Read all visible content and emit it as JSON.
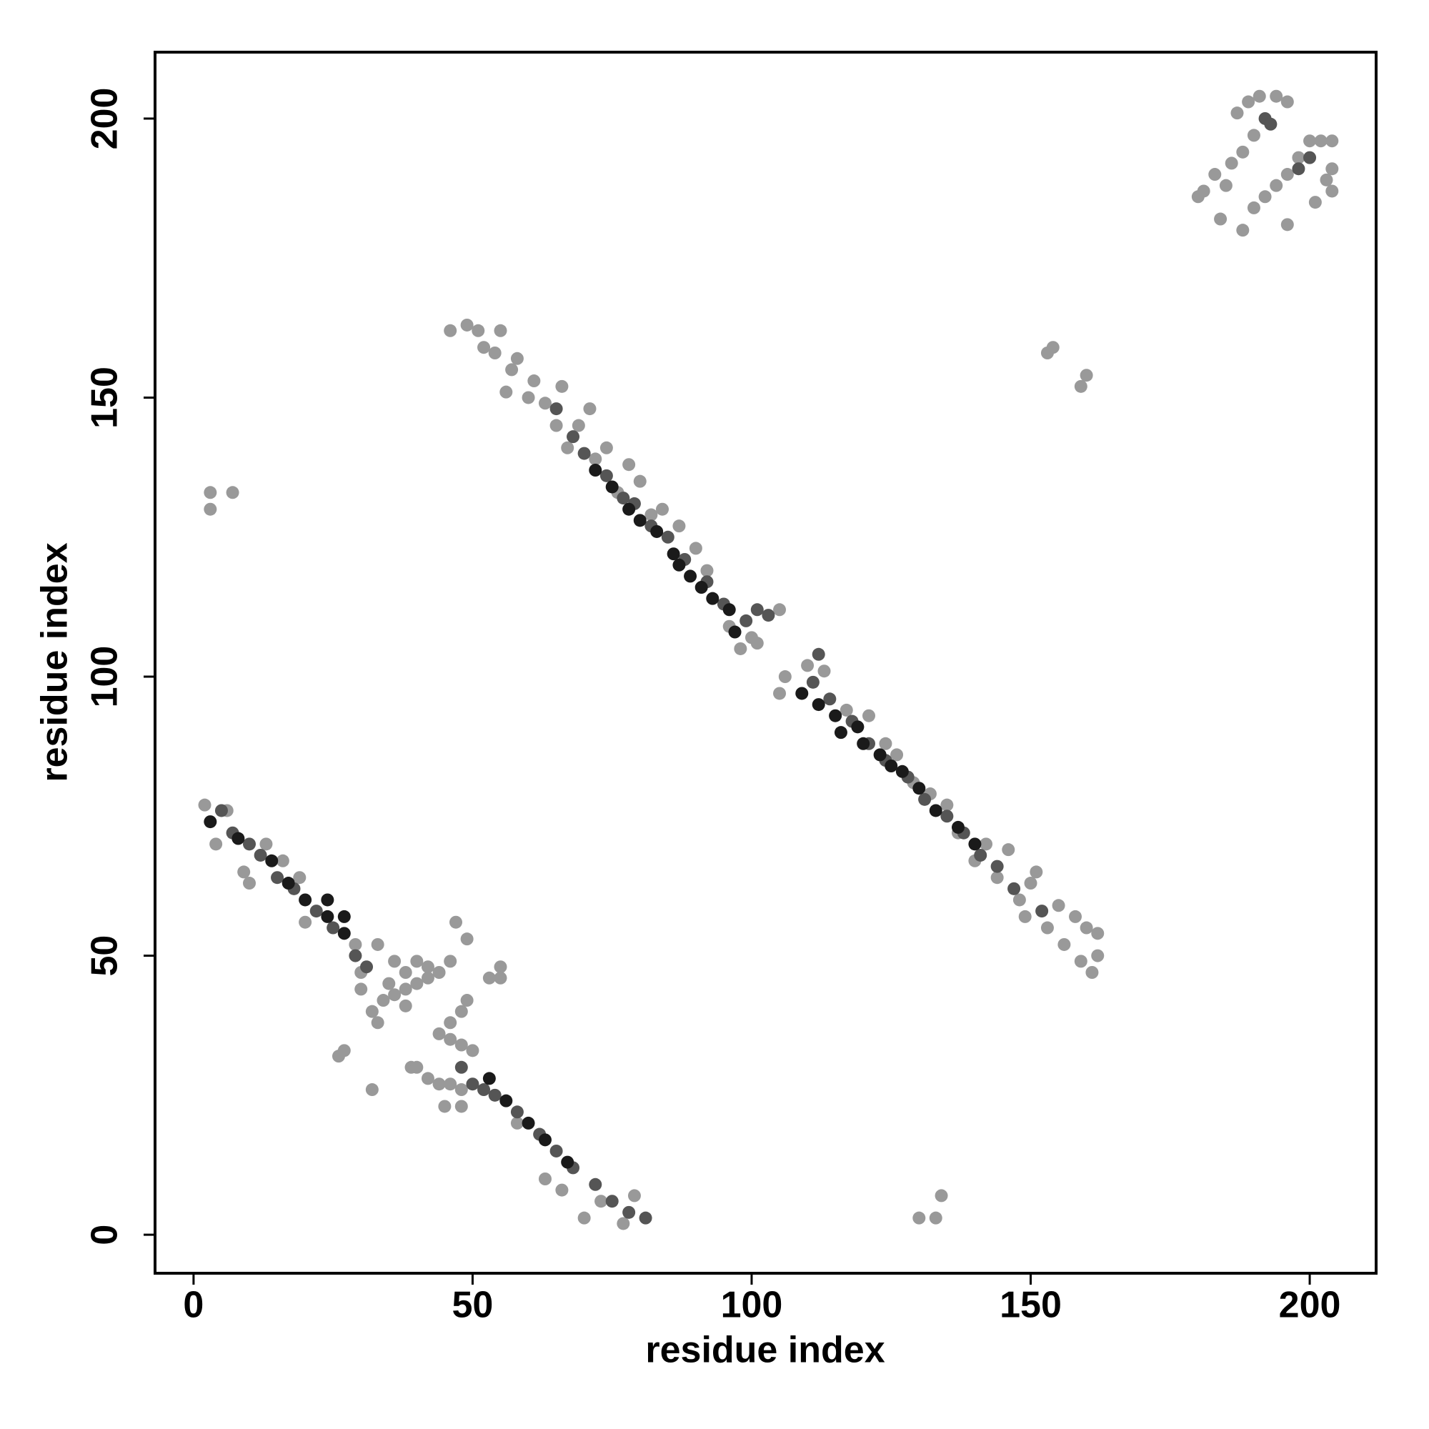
{
  "chart_data": {
    "type": "scatter",
    "x_label": "residue index",
    "y_label": "residue index",
    "xlim": [
      -6.9,
      211.9
    ],
    "ylim": [
      -6.9,
      211.9
    ],
    "xticks": [
      0,
      50,
      100,
      150,
      200
    ],
    "yticks": [
      0,
      50,
      100,
      150,
      200
    ],
    "series": [
      {
        "color": "#999999",
        "x": [
          2,
          4,
          6,
          9,
          10,
          13,
          16,
          19,
          20,
          29,
          33,
          30,
          30,
          32,
          33,
          35,
          36,
          38,
          40,
          42,
          44,
          46,
          36,
          38,
          40,
          42,
          34,
          38,
          39,
          40,
          42,
          44,
          46,
          48,
          45,
          48,
          44,
          46,
          48,
          49,
          46,
          48,
          50,
          47,
          49,
          53,
          55,
          55,
          26,
          32,
          27,
          58,
          63,
          66,
          70,
          73,
          77,
          79,
          46,
          49,
          51,
          52,
          54,
          55,
          57,
          56,
          58,
          60,
          61,
          63,
          65,
          66,
          67,
          69,
          71,
          72,
          74,
          76,
          78,
          80,
          82,
          84,
          87,
          90,
          92,
          96,
          98,
          100,
          101,
          105,
          105,
          106,
          110,
          113,
          117,
          121,
          124,
          126,
          129,
          132,
          135,
          137,
          140,
          142,
          144,
          146,
          148,
          149,
          150,
          151,
          153,
          155,
          156,
          158,
          159,
          160,
          161,
          162,
          162,
          180,
          181,
          183,
          185,
          186,
          188,
          190,
          187,
          189,
          191,
          194,
          196,
          184,
          188,
          190,
          192,
          194,
          196,
          198,
          200,
          202,
          204,
          204,
          204,
          201,
          203,
          196,
          3,
          3,
          7,
          153,
          154,
          159,
          160,
          130,
          133,
          134
        ],
        "y": [
          77,
          70,
          76,
          65,
          63,
          70,
          67,
          64,
          56,
          52,
          52,
          47,
          44,
          40,
          38,
          45,
          49,
          47,
          49,
          48,
          47,
          49,
          43,
          44,
          45,
          46,
          42,
          41,
          30,
          30,
          28,
          27,
          27,
          26,
          23,
          23,
          36,
          38,
          40,
          42,
          35,
          34,
          33,
          56,
          53,
          46,
          48,
          46,
          32,
          26,
          33,
          20,
          10,
          8,
          3,
          6,
          2,
          7,
          162,
          163,
          162,
          159,
          158,
          162,
          155,
          151,
          157,
          150,
          153,
          149,
          145,
          152,
          141,
          145,
          148,
          139,
          141,
          133,
          138,
          135,
          129,
          130,
          127,
          123,
          119,
          109,
          105,
          107,
          106,
          112,
          97,
          100,
          102,
          101,
          94,
          93,
          88,
          86,
          81,
          79,
          77,
          72,
          67,
          70,
          64,
          69,
          60,
          57,
          63,
          65,
          55,
          59,
          52,
          57,
          49,
          55,
          47,
          50,
          54,
          186,
          187,
          190,
          188,
          192,
          194,
          197,
          201,
          203,
          204,
          204,
          203,
          182,
          180,
          184,
          186,
          188,
          190,
          193,
          196,
          196,
          196,
          191,
          187,
          185,
          189,
          181,
          130,
          133,
          133,
          158,
          159,
          152,
          154,
          3,
          3,
          7
        ]
      },
      {
        "color": "#555555",
        "x": [
          5,
          7,
          10,
          12,
          15,
          18,
          22,
          25,
          29,
          31,
          48,
          50,
          52,
          54,
          58,
          62,
          65,
          68,
          72,
          75,
          78,
          81,
          65,
          68,
          70,
          74,
          77,
          79,
          82,
          85,
          88,
          92,
          95,
          99,
          101,
          103,
          112,
          111,
          114,
          118,
          121,
          124,
          128,
          131,
          135,
          138,
          141,
          144,
          147,
          152,
          192,
          193,
          200,
          198
        ],
        "y": [
          76,
          72,
          70,
          68,
          64,
          62,
          58,
          55,
          50,
          48,
          30,
          27,
          26,
          25,
          22,
          18,
          15,
          12,
          9,
          6,
          4,
          3,
          148,
          143,
          140,
          136,
          132,
          131,
          127,
          125,
          121,
          117,
          113,
          110,
          112,
          111,
          104,
          99,
          96,
          92,
          88,
          85,
          82,
          78,
          75,
          72,
          68,
          66,
          62,
          58,
          200,
          199,
          193,
          191
        ]
      },
      {
        "color": "#1a1a1a",
        "x": [
          3,
          8,
          14,
          17,
          20,
          24,
          24,
          27,
          27,
          53,
          56,
          60,
          63,
          67,
          72,
          75,
          78,
          80,
          83,
          86,
          87,
          89,
          91,
          93,
          96,
          97,
          109,
          112,
          115,
          116,
          119,
          120,
          123,
          125,
          127,
          130,
          133,
          137,
          140
        ],
        "y": [
          74,
          71,
          67,
          63,
          60,
          57,
          60,
          54,
          57,
          28,
          24,
          20,
          17,
          13,
          137,
          134,
          130,
          128,
          126,
          122,
          120,
          118,
          116,
          114,
          112,
          108,
          97,
          95,
          93,
          90,
          91,
          88,
          86,
          84,
          83,
          80,
          76,
          73,
          70
        ]
      }
    ]
  }
}
